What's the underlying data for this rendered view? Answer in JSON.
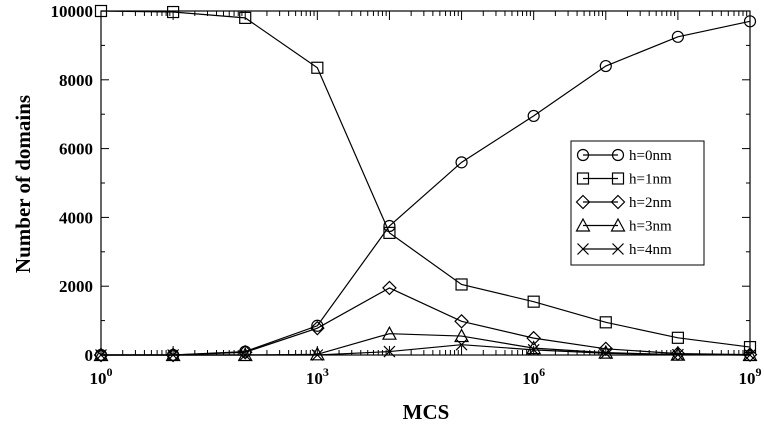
{
  "chart_data": {
    "type": "line",
    "xlabel": "MCS",
    "ylabel": "Number of domains",
    "xscale": "log",
    "xlim": [
      1,
      1000000000
    ],
    "ylim": [
      0,
      10000
    ],
    "x_ticks": [
      {
        "base": "10",
        "exp": "0",
        "value": 1
      },
      {
        "base": "10",
        "exp": "3",
        "value": 1000
      },
      {
        "base": "10",
        "exp": "6",
        "value": 1000000
      },
      {
        "base": "10",
        "exp": "9",
        "value": 1000000000
      }
    ],
    "y_ticks": [
      "0",
      "2000",
      "4000",
      "6000",
      "8000",
      "10000"
    ],
    "y_tick_values": [
      0,
      2000,
      4000,
      6000,
      8000,
      10000
    ],
    "grid": false,
    "legend_position": "right",
    "x": [
      1,
      10,
      100,
      1000,
      10000,
      100000,
      1000000,
      10000000,
      100000000,
      1000000000
    ],
    "series": [
      {
        "name": "h=0nm",
        "marker": "circle",
        "values": [
          0,
          0,
          100,
          850,
          3750,
          5600,
          6950,
          8400,
          9250,
          9700
        ]
      },
      {
        "name": "h=1nm",
        "marker": "square",
        "values": [
          10000,
          9970,
          9800,
          8350,
          3550,
          2050,
          1550,
          950,
          500,
          230
        ]
      },
      {
        "name": "h=2nm",
        "marker": "diamond",
        "values": [
          0,
          0,
          80,
          780,
          1950,
          980,
          490,
          180,
          40,
          10
        ]
      },
      {
        "name": "h=3nm",
        "marker": "triangle",
        "values": [
          0,
          0,
          0,
          20,
          620,
          550,
          200,
          70,
          10,
          0
        ]
      },
      {
        "name": "h=4nm",
        "marker": "x",
        "values": [
          0,
          0,
          0,
          0,
          100,
          300,
          150,
          50,
          10,
          0
        ]
      }
    ]
  }
}
